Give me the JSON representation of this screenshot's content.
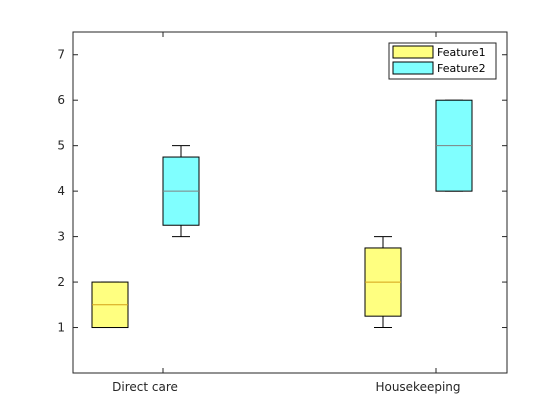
{
  "chart_data": {
    "type": "boxplot",
    "title": "",
    "xlabel": "",
    "ylabel": "",
    "categories": [
      "Direct care",
      "Housekeeping"
    ],
    "ylim": [
      0,
      7.5
    ],
    "yticks": [
      1,
      2,
      3,
      4,
      5,
      6,
      7
    ],
    "grid": false,
    "legend_position": "top-right",
    "series": [
      {
        "name": "Feature1",
        "color": "#ffff80",
        "median_color": "#d4a017",
        "boxes": [
          {
            "category": "Direct care",
            "whisker_low": 1,
            "q1": 1,
            "median": 1.5,
            "q3": 2,
            "whisker_high": 2
          },
          {
            "category": "Housekeeping",
            "whisker_low": 1,
            "q1": 1.25,
            "median": 2,
            "q3": 2.75,
            "whisker_high": 3
          }
        ]
      },
      {
        "name": "Feature2",
        "color": "#80ffff",
        "median_color": "#808080",
        "boxes": [
          {
            "category": "Direct care",
            "whisker_low": 3,
            "q1": 3.25,
            "median": 4,
            "q3": 4.75,
            "whisker_high": 5
          },
          {
            "category": "Housekeeping",
            "whisker_low": 4,
            "q1": 4,
            "median": 5,
            "q3": 6,
            "whisker_high": 6
          }
        ]
      }
    ]
  }
}
